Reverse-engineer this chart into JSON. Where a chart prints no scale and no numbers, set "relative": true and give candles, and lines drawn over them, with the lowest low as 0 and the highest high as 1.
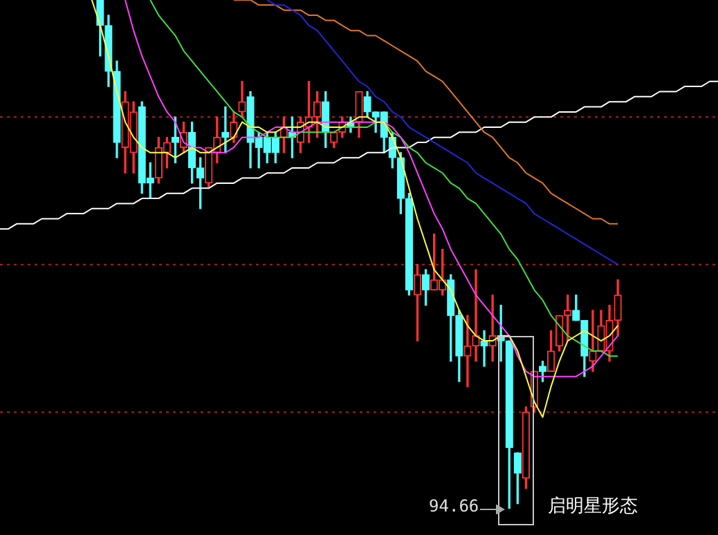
{
  "chart_data": {
    "type": "candlestick",
    "relative": true,
    "categories": [
      null,
      null,
      null,
      null,
      null,
      null,
      null,
      null,
      null,
      null,
      null,
      null,
      null,
      null,
      null,
      null,
      null,
      null,
      null,
      null,
      null,
      null,
      null,
      null,
      null,
      null,
      null,
      null,
      null,
      null,
      null,
      null,
      null,
      null,
      null,
      null,
      null,
      null,
      null,
      null,
      null,
      null,
      null,
      null,
      null,
      null,
      null,
      null,
      null,
      null,
      null,
      null,
      null,
      null,
      null,
      null,
      null,
      null,
      null,
      null,
      null,
      null,
      null,
      null,
      null,
      null,
      null,
      null,
      null,
      null,
      null,
      null,
      null,
      null,
      null,
      null,
      null,
      null,
      null,
      null,
      null,
      null,
      null,
      null,
      null,
      null,
      null
    ],
    "ohlc": [
      null,
      null,
      null,
      null,
      null,
      null,
      null,
      null,
      null,
      null,
      null,
      null,
      [
        1,
        1,
        0.89,
        0.95
      ],
      [
        0.95,
        0.97,
        0.83,
        0.86
      ],
      [
        0.86,
        0.88,
        0.69,
        0.72
      ],
      [
        0.71,
        0.82,
        0.66,
        0.8
      ],
      [
        0.7,
        0.8,
        0.66,
        0.78
      ],
      [
        0.79,
        0.8,
        0.62,
        0.64
      ],
      [
        0.65,
        0.68,
        0.61,
        0.64
      ],
      [
        0.65,
        0.73,
        0.64,
        0.71
      ],
      [
        0.7,
        0.73,
        0.67,
        0.72
      ],
      [
        0.73,
        0.77,
        0.68,
        0.72
      ],
      [
        0.71,
        0.76,
        0.7,
        0.74
      ],
      [
        0.74,
        0.76,
        0.64,
        0.67
      ],
      [
        0.67,
        0.69,
        0.59,
        0.65
      ],
      [
        0.64,
        0.71,
        0.63,
        0.71
      ],
      [
        0.7,
        0.77,
        0.68,
        0.73
      ],
      [
        0.74,
        0.79,
        0.7,
        0.73
      ],
      [
        0.73,
        0.78,
        0.72,
        0.76
      ],
      [
        0.78,
        0.84,
        0.77,
        0.8
      ],
      [
        0.81,
        0.82,
        0.67,
        0.72
      ],
      [
        0.73,
        0.74,
        0.67,
        0.71
      ],
      [
        0.73,
        0.74,
        0.68,
        0.7
      ],
      [
        0.73,
        0.74,
        0.68,
        0.7
      ],
      [
        0.73,
        0.77,
        0.7,
        0.75
      ],
      [
        0.74,
        0.77,
        0.69,
        0.73
      ],
      [
        0.72,
        0.77,
        0.7,
        0.76
      ],
      [
        0.75,
        0.84,
        0.72,
        0.77
      ],
      [
        0.77,
        0.82,
        0.73,
        0.8
      ],
      [
        0.8,
        0.82,
        0.71,
        0.74
      ],
      [
        0.72,
        0.74,
        0.71,
        0.74
      ],
      [
        0.74,
        0.77,
        0.73,
        0.76
      ],
      [
        0.76,
        0.77,
        0.74,
        0.75
      ],
      [
        0.76,
        0.82,
        0.73,
        0.82
      ],
      [
        0.81,
        0.82,
        0.77,
        0.78
      ],
      [
        0.78,
        0.78,
        0.74,
        0.77
      ],
      [
        0.78,
        0.78,
        0.7,
        0.73
      ],
      [
        0.73,
        0.74,
        0.67,
        0.69
      ],
      [
        0.69,
        0.7,
        0.58,
        0.61
      ],
      [
        0.61,
        0.62,
        0.42,
        0.43
      ],
      [
        0.42,
        0.48,
        0.33,
        0.46
      ],
      [
        0.46,
        0.47,
        0.4,
        0.43
      ],
      [
        0.43,
        0.54,
        0.43,
        0.45
      ],
      [
        0.43,
        0.51,
        0.42,
        0.45
      ],
      [
        0.45,
        0.46,
        0.29,
        0.38
      ],
      [
        0.38,
        0.39,
        0.25,
        0.3
      ],
      [
        0.3,
        0.38,
        0.24,
        0.32
      ],
      [
        0.32,
        0.47,
        0.29,
        0.34
      ],
      [
        0.33,
        0.35,
        0.28,
        0.32
      ],
      [
        0.32,
        0.42,
        0.29,
        0.34
      ],
      [
        0.34,
        0.4,
        0.29,
        0.33
      ],
      [
        0.33,
        0.33,
        0,
        0.12
      ],
      [
        0.11,
        0.11,
        0.01,
        0.07
      ],
      [
        0.06,
        0.2,
        0.04,
        0.19
      ],
      [
        0.2,
        0.27,
        0.19,
        0.27
      ],
      [
        0.28,
        0.29,
        0.25,
        0.27
      ],
      [
        0.27,
        0.35,
        0.27,
        0.31
      ],
      [
        0.32,
        0.38,
        0.31,
        0.38
      ],
      [
        0.38,
        0.42,
        0.33,
        0.39
      ],
      [
        0.39,
        0.42,
        0.37,
        0.37
      ],
      [
        0.37,
        0.37,
        0.26,
        0.3
      ],
      [
        0.29,
        0.39,
        0.27,
        0.31
      ],
      [
        0.31,
        0.39,
        0.31,
        0.36
      ],
      [
        0.31,
        0.4,
        0.29,
        0.37
      ],
      [
        0.37,
        0.45,
        0.34,
        0.42
      ],
      null,
      null,
      null,
      null,
      null,
      null,
      null,
      null,
      null,
      null,
      null,
      null
    ],
    "colors": [
      null,
      null,
      null,
      null,
      null,
      null,
      null,
      null,
      null,
      null,
      null,
      null,
      "#54fcfc",
      "#54fcfc",
      "#54fcfc",
      "#ff3232",
      "#ff3232",
      "#54fcfc",
      "#54fcfc",
      "#ff3232",
      "#ff3232",
      "#54fcfc",
      "#ff3232",
      "#54fcfc",
      "#54fcfc",
      "#ff3232",
      "#ff3232",
      "#54fcfc",
      "#ff3232",
      "#ff3232",
      "#54fcfc",
      "#54fcfc",
      "#54fcfc",
      "#54fcfc",
      "#ff3232",
      "#54fcfc",
      "#ff3232",
      "#ff3232",
      "#ff3232",
      "#54fcfc",
      "#ff3232",
      "#ff3232",
      "#54fcfc",
      "#ff3232",
      "#54fcfc",
      "#54fcfc",
      "#54fcfc",
      "#54fcfc",
      "#54fcfc",
      "#54fcfc",
      "#ff3232",
      "#54fcfc",
      "#ff3232",
      "#ff3232",
      "#54fcfc",
      "#54fcfc",
      "#ff3232",
      "#ff3232",
      "#54fcfc",
      "#ff3232",
      "#54fcfc",
      "#54fcfc",
      "#54fcfc",
      "#ff3232",
      "#ff3232",
      "#54fcfc",
      "#ff3232",
      "#ff3232",
      "#ff3232",
      "#54fcfc",
      "#54fcfc",
      "#ff3232",
      "#ff3232",
      "#ff3232",
      "#ff3232",
      null,
      null,
      null,
      null,
      null,
      null,
      null,
      null,
      null,
      null,
      null,
      null
    ],
    "series": [
      {
        "type": "line",
        "color": "#ffff40",
        "values": [
          null,
          null,
          null,
          null,
          null,
          null,
          null,
          null,
          null,
          null,
          null,
          1,
          0.95,
          0.89,
          0.82,
          0.76,
          0.73,
          0.71,
          0.7,
          0.7,
          0.7,
          0.69,
          0.7,
          0.71,
          0.7,
          0.7,
          0.71,
          0.72,
          0.73,
          0.76,
          0.75,
          0.75,
          0.74,
          0.74,
          0.75,
          0.75,
          0.75,
          0.76,
          0.76,
          0.75,
          0.75,
          0.75,
          0.76,
          0.77,
          0.77,
          0.76,
          0.76,
          0.73,
          0.69,
          0.63,
          0.57,
          0.52,
          0.47,
          0.45,
          0.43,
          0.39,
          0.36,
          0.34,
          0.33,
          0.33,
          0.34,
          0.34,
          0.31,
          0.26,
          0.21,
          0.18,
          0.24,
          0.29,
          0.33,
          0.34,
          0.35,
          0.34,
          0.33,
          0.34,
          0.36,
          null,
          null,
          null,
          null,
          null,
          null,
          null,
          null,
          null,
          null,
          null,
          null
        ]
      },
      {
        "type": "line",
        "color": "#ff40ff",
        "values": [
          null,
          null,
          null,
          null,
          null,
          null,
          null,
          null,
          null,
          null,
          null,
          null,
          null,
          null,
          null,
          1,
          0.94,
          0.89,
          0.85,
          0.81,
          0.78,
          0.76,
          0.72,
          0.71,
          0.71,
          0.7,
          0.7,
          0.7,
          0.71,
          0.73,
          0.73,
          0.73,
          0.74,
          0.75,
          0.75,
          0.74,
          0.74,
          0.75,
          0.76,
          0.76,
          0.76,
          0.76,
          0.76,
          0.76,
          0.76,
          0.76,
          0.76,
          0.75,
          0.73,
          0.7,
          0.66,
          0.62,
          0.58,
          0.55,
          0.51,
          0.48,
          0.45,
          0.42,
          0.4,
          0.38,
          0.36,
          0.34,
          0.3,
          0.27,
          0.26,
          0.26,
          0.26,
          0.26,
          0.26,
          0.26,
          0.27,
          0.28,
          0.3,
          0.32,
          0.34,
          null,
          null,
          null,
          null,
          null,
          null,
          null,
          null,
          null,
          null,
          null,
          null
        ]
      },
      {
        "type": "line",
        "color": "#40e040",
        "values": [
          null,
          null,
          null,
          null,
          null,
          null,
          null,
          null,
          null,
          null,
          null,
          null,
          null,
          null,
          null,
          null,
          null,
          null,
          1,
          0.97,
          0.95,
          0.93,
          0.9,
          0.88,
          0.86,
          0.84,
          0.82,
          0.8,
          0.78,
          0.77,
          0.75,
          0.74,
          0.73,
          0.73,
          0.73,
          0.73,
          0.74,
          0.74,
          0.74,
          0.74,
          0.74,
          0.75,
          0.75,
          0.75,
          0.75,
          0.76,
          0.76,
          0.74,
          0.73,
          0.71,
          0.7,
          0.68,
          0.67,
          0.66,
          0.64,
          0.63,
          0.61,
          0.6,
          0.58,
          0.56,
          0.54,
          0.51,
          0.49,
          0.46,
          0.43,
          0.41,
          0.38,
          0.36,
          0.34,
          0.33,
          0.32,
          0.31,
          0.31,
          0.3,
          0.3,
          null,
          null,
          null,
          null,
          null,
          null,
          null,
          null,
          null,
          null,
          null,
          null
        ]
      },
      {
        "type": "line",
        "color": "#2424d8",
        "values": [
          null,
          null,
          null,
          null,
          null,
          null,
          null,
          null,
          null,
          null,
          null,
          null,
          null,
          null,
          null,
          null,
          null,
          null,
          null,
          null,
          null,
          null,
          null,
          null,
          null,
          null,
          null,
          null,
          null,
          null,
          null,
          null,
          1,
          0.99,
          0.99,
          0.98,
          0.97,
          0.95,
          0.94,
          0.92,
          0.9,
          0.88,
          0.86,
          0.84,
          0.83,
          0.81,
          0.8,
          0.78,
          0.77,
          0.75,
          0.74,
          0.73,
          0.72,
          0.71,
          0.7,
          0.69,
          0.68,
          0.66,
          0.65,
          0.64,
          0.63,
          0.62,
          0.61,
          0.6,
          0.58,
          0.57,
          0.56,
          0.55,
          0.54,
          0.53,
          0.52,
          0.51,
          0.5,
          0.49,
          0.48,
          null,
          null,
          null,
          null,
          null,
          null,
          null,
          null,
          null,
          null,
          null,
          null
        ]
      },
      {
        "type": "line",
        "color": "#e07828",
        "values": [
          null,
          null,
          null,
          null,
          null,
          null,
          null,
          null,
          null,
          null,
          null,
          null,
          null,
          null,
          null,
          null,
          null,
          null,
          null,
          null,
          null,
          null,
          null,
          null,
          null,
          null,
          null,
          null,
          1,
          1,
          1,
          0.99,
          0.99,
          0.99,
          0.98,
          0.98,
          0.98,
          0.97,
          0.97,
          0.96,
          0.96,
          0.95,
          0.94,
          0.94,
          0.93,
          0.93,
          0.92,
          0.91,
          0.9,
          0.89,
          0.88,
          0.86,
          0.85,
          0.84,
          0.82,
          0.8,
          0.78,
          0.76,
          0.74,
          0.73,
          0.71,
          0.69,
          0.68,
          0.66,
          0.65,
          0.64,
          0.62,
          0.61,
          0.6,
          0.59,
          0.58,
          0.57,
          0.57,
          0.56,
          0.56,
          null,
          null,
          null,
          null,
          null,
          null,
          null,
          null,
          null,
          null,
          null,
          null
        ]
      },
      {
        "type": "line",
        "color": "#ffffff",
        "values": [
          0.55,
          0.55,
          0.56,
          0.56,
          0.56,
          0.57,
          0.57,
          0.57,
          0.58,
          0.58,
          0.58,
          0.59,
          0.59,
          0.59,
          0.6,
          0.6,
          0.6,
          0.61,
          0.61,
          0.61,
          0.62,
          0.62,
          0.62,
          0.63,
          0.63,
          0.63,
          0.64,
          0.64,
          0.64,
          0.65,
          0.65,
          0.65,
          0.66,
          0.66,
          0.66,
          0.67,
          0.67,
          0.67,
          0.68,
          0.68,
          0.68,
          0.69,
          0.69,
          0.69,
          0.7,
          0.7,
          0.7,
          0.71,
          0.71,
          0.71,
          0.72,
          0.72,
          0.73,
          0.73,
          0.73,
          0.74,
          0.74,
          0.74,
          0.75,
          0.75,
          0.75,
          0.76,
          0.76,
          0.76,
          0.77,
          0.77,
          0.77,
          0.78,
          0.78,
          0.78,
          0.79,
          0.79,
          0.79,
          0.8,
          0.8,
          0.8,
          0.81,
          0.81,
          0.81,
          0.82,
          0.82,
          0.82,
          0.83,
          0.83,
          0.83,
          0.84,
          0.84
        ]
      }
    ],
    "ref_lines": [
      {
        "axis": "y",
        "value": 0.77,
        "color": "#b02020",
        "line_style": "dotted"
      },
      {
        "axis": "y",
        "value": 0.48,
        "color": "#b02020",
        "line_style": "dotted"
      },
      {
        "axis": "y",
        "value": 0.19,
        "color": "#b02020",
        "line_style": "dotted"
      }
    ],
    "annotations": [
      "94.66",
      "启明星形态"
    ]
  }
}
